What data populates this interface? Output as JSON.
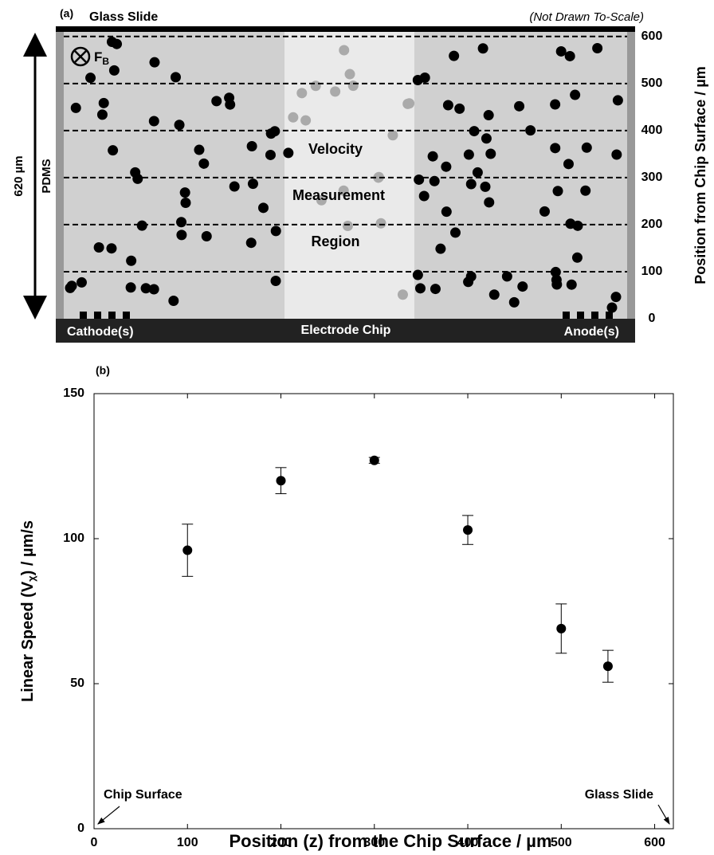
{
  "diagram": {
    "panel_label": "(a)",
    "top_label": "Glass Slide",
    "note": "(Not Drawn To-Scale)",
    "force_label": "F",
    "force_subscript": "B",
    "region_labels": [
      "Velocity",
      "Measurement",
      "Region"
    ],
    "height_label": "620 µm",
    "side_label": "PDMS",
    "bottom_labels": [
      "Cathode(s)",
      "Electrode Chip",
      "Anode(s)"
    ],
    "axis_label": "Position from Chip Surface / µm",
    "lim": [
      0,
      620
    ],
    "ticks": [
      0,
      100,
      200,
      300,
      400,
      500,
      600
    ]
  },
  "chart_data": {
    "type": "scatter",
    "panel_label": "(b)",
    "x_label": "Position (z) from the Chip Surface / µm",
    "y_label": "Linear Speed (V",
    "y_label_sub": "χ",
    "y_label_end": ") / µm/s",
    "x": [
      100,
      200,
      300,
      400,
      500,
      550
    ],
    "series": [
      {
        "color": "#000000",
        "values": [
          96,
          120,
          127,
          103,
          69,
          56
        ],
        "errors": [
          9,
          4.5,
          1,
          5,
          8.5,
          5.5
        ]
      }
    ],
    "xlim": [
      0,
      620
    ],
    "ylim": [
      0,
      150
    ],
    "xticks": [
      0,
      100,
      200,
      300,
      400,
      500,
      600
    ],
    "yticks": [
      0,
      50,
      100,
      150
    ],
    "annotations": [
      "Chip Surface",
      "Glass Slide"
    ]
  }
}
